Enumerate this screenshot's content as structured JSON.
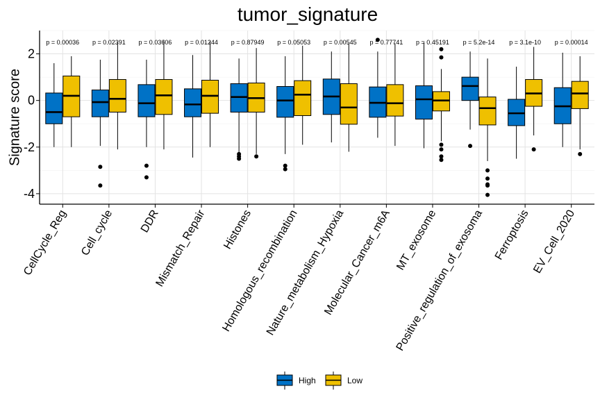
{
  "chart_data": {
    "type": "boxplot",
    "title": "tumor_signature",
    "xlabel": "",
    "ylabel": "Signature score",
    "ylim": [
      -4.45,
      3.0
    ],
    "yticks": [
      -4,
      -2,
      0,
      2
    ],
    "grid": true,
    "legend": {
      "placement": "bottom"
    },
    "categories": [
      "CellCycle_Reg",
      "Cell_cycle",
      "DDR",
      "Mismatch_Repair",
      "Histones",
      "Homologous_recombination",
      "Nature_metabolism_Hypoxia",
      "Molecular_Cancer_m6A",
      "MT_exosome",
      "Positive_regulation_of_exosoma",
      "Ferroptosis",
      "EV_Cell_2020"
    ],
    "pvalues": [
      "p = 0.00036",
      "p = 0.02391",
      "p = 0.03606",
      "p = 0.01244",
      "p = 0.87949",
      "p = 0.05053",
      "p = 0.00545",
      "p = 0.77741",
      "p = 0.45191",
      "p = 5.2e-14",
      "p = 3.1e-10",
      "p = 0.00014"
    ],
    "series": [
      {
        "name": "High",
        "color": "#0072C6",
        "boxes": [
          {
            "min": -2.0,
            "q1": -1.0,
            "median": -0.5,
            "q3": 0.32,
            "max": 1.6,
            "outliers": []
          },
          {
            "min": -1.95,
            "q1": -0.7,
            "median": -0.07,
            "q3": 0.45,
            "max": 1.75,
            "outliers": [
              -2.85,
              -3.65
            ]
          },
          {
            "min": -2.0,
            "q1": -0.7,
            "median": -0.12,
            "q3": 0.68,
            "max": 1.75,
            "outliers": [
              -2.8,
              -3.3
            ]
          },
          {
            "min": -2.45,
            "q1": -0.7,
            "median": -0.17,
            "q3": 0.5,
            "max": 1.95,
            "outliers": []
          },
          {
            "min": -2.25,
            "q1": -0.5,
            "median": 0.15,
            "q3": 0.72,
            "max": 1.8,
            "outliers": [
              -2.3,
              -2.4,
              -2.5
            ]
          },
          {
            "min": -2.3,
            "q1": -0.72,
            "median": 0.0,
            "q3": 0.6,
            "max": 1.9,
            "outliers": [
              -2.8,
              -2.95
            ]
          },
          {
            "min": -1.8,
            "q1": -0.6,
            "median": 0.17,
            "q3": 0.92,
            "max": 2.1,
            "outliers": []
          },
          {
            "min": -1.6,
            "q1": -0.72,
            "median": -0.1,
            "q3": 0.58,
            "max": 2.1,
            "outliers": [
              2.6
            ]
          },
          {
            "min": -2.05,
            "q1": -0.8,
            "median": 0.05,
            "q3": 0.63,
            "max": 2.5,
            "outliers": []
          },
          {
            "min": -1.25,
            "q1": 0.0,
            "median": 0.62,
            "q3": 1.0,
            "max": 2.1,
            "outliers": [
              -1.95
            ]
          },
          {
            "min": -2.5,
            "q1": -1.08,
            "median": -0.55,
            "q3": 0.05,
            "max": 1.45,
            "outliers": []
          },
          {
            "min": -2.0,
            "q1": -1.0,
            "median": -0.25,
            "q3": 0.55,
            "max": 2.05,
            "outliers": []
          }
        ]
      },
      {
        "name": "Low",
        "color": "#EFC000",
        "boxes": [
          {
            "min": -2.0,
            "q1": -0.7,
            "median": 0.2,
            "q3": 1.05,
            "max": 1.9,
            "outliers": []
          },
          {
            "min": -2.1,
            "q1": -0.5,
            "median": 0.07,
            "q3": 0.9,
            "max": 2.5,
            "outliers": []
          },
          {
            "min": -2.1,
            "q1": -0.6,
            "median": 0.22,
            "q3": 0.9,
            "max": 2.6,
            "outliers": []
          },
          {
            "min": -2.0,
            "q1": -0.55,
            "median": 0.2,
            "q3": 0.87,
            "max": 2.55,
            "outliers": []
          },
          {
            "min": -2.3,
            "q1": -0.5,
            "median": 0.1,
            "q3": 0.75,
            "max": 2.25,
            "outliers": [
              -2.4
            ]
          },
          {
            "min": -1.9,
            "q1": -0.65,
            "median": 0.25,
            "q3": 0.85,
            "max": 2.35,
            "outliers": []
          },
          {
            "min": -2.2,
            "q1": -1.02,
            "median": -0.3,
            "q3": 0.72,
            "max": 2.45,
            "outliers": []
          },
          {
            "min": -1.95,
            "q1": -0.67,
            "median": -0.12,
            "q3": 0.68,
            "max": 2.45,
            "outliers": []
          },
          {
            "min": -1.75,
            "q1": -0.45,
            "median": 0.0,
            "q3": 0.38,
            "max": 1.35,
            "outliers": [
              2.2,
              1.85,
              -1.9,
              -2.1,
              -2.4,
              -2.55
            ]
          },
          {
            "min": -2.6,
            "q1": -1.05,
            "median": -0.33,
            "q3": 0.15,
            "max": 1.8,
            "outliers": [
              -3.0,
              -3.35,
              -3.6,
              -3.65,
              -4.05
            ]
          },
          {
            "min": -1.5,
            "q1": -0.25,
            "median": 0.3,
            "q3": 0.9,
            "max": 2.3,
            "outliers": [
              -2.1
            ]
          },
          {
            "min": -2.1,
            "q1": -0.35,
            "median": 0.3,
            "q3": 0.82,
            "max": 1.9,
            "outliers": [
              -2.3
            ]
          }
        ]
      }
    ]
  }
}
